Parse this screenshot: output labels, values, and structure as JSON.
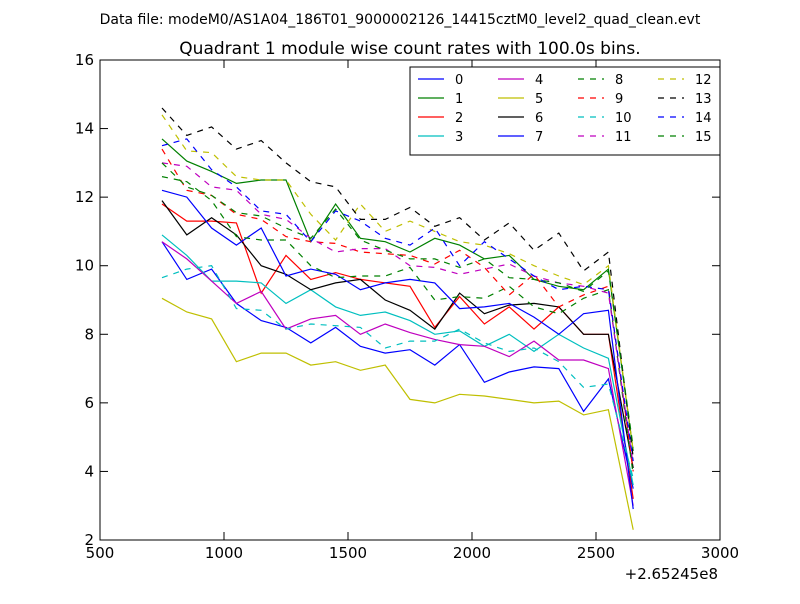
{
  "chart_data": {
    "type": "line",
    "suptitle": "Data file: modeM0/AS1A04_186T01_9000002126_14415cztM0_level2_quad_clean.evt",
    "title": "Quadrant 1 module wise count rates with 100.0s bins.",
    "xlabel": "",
    "ylabel": "",
    "x_offset_label": "+2.65245e8",
    "xlim": [
      500,
      3000
    ],
    "ylim": [
      2,
      16
    ],
    "xticks": [
      500,
      1000,
      1500,
      2000,
      2500,
      3000
    ],
    "yticks": [
      2,
      4,
      6,
      8,
      10,
      12,
      14,
      16
    ],
    "x": [
      750,
      850,
      950,
      1050,
      1150,
      1250,
      1350,
      1450,
      1550,
      1650,
      1750,
      1850,
      1950,
      2050,
      2150,
      2250,
      2350,
      2450,
      2550,
      2650
    ],
    "legend_position": "top-right",
    "series": [
      {
        "name": "0",
        "color": "#0000ff",
        "dash": "solid",
        "values": [
          10.7,
          9.6,
          9.9,
          8.9,
          8.4,
          8.2,
          7.75,
          8.2,
          7.65,
          7.45,
          7.55,
          7.1,
          7.7,
          6.6,
          6.9,
          7.05,
          7.0,
          5.75,
          6.7,
          3.5
        ]
      },
      {
        "name": "1",
        "color": "#008000",
        "dash": "solid",
        "values": [
          13.7,
          13.05,
          12.75,
          12.4,
          12.5,
          12.5,
          10.7,
          11.8,
          10.8,
          10.7,
          10.4,
          10.8,
          10.6,
          10.2,
          10.3,
          9.6,
          9.4,
          9.3,
          9.9,
          4.6
        ]
      },
      {
        "name": "2",
        "color": "#ff0000",
        "dash": "solid",
        "values": [
          11.8,
          11.3,
          11.3,
          11.25,
          9.2,
          10.3,
          9.6,
          9.8,
          9.6,
          9.5,
          9.4,
          8.2,
          9.1,
          8.3,
          8.8,
          8.15,
          8.8,
          8.0,
          8.0,
          3.2
        ]
      },
      {
        "name": "3",
        "color": "#00bfbf",
        "dash": "solid",
        "values": [
          10.9,
          10.3,
          9.55,
          9.55,
          9.5,
          8.9,
          9.3,
          8.8,
          8.55,
          8.65,
          8.4,
          8.0,
          8.1,
          7.65,
          8.0,
          7.5,
          8.0,
          7.6,
          7.3,
          3.6
        ]
      },
      {
        "name": "4",
        "color": "#bf00bf",
        "dash": "solid",
        "values": [
          10.7,
          10.2,
          9.55,
          8.9,
          9.25,
          8.15,
          8.45,
          8.55,
          8.0,
          8.3,
          8.05,
          7.85,
          7.7,
          7.65,
          7.35,
          7.8,
          7.25,
          7.25,
          7.0,
          3.0
        ]
      },
      {
        "name": "5",
        "color": "#bfbf00",
        "dash": "solid",
        "values": [
          9.05,
          8.65,
          8.45,
          7.2,
          7.45,
          7.45,
          7.1,
          7.2,
          6.95,
          7.1,
          6.1,
          6.0,
          6.25,
          6.2,
          6.1,
          6.0,
          6.05,
          5.65,
          5.8,
          2.3
        ]
      },
      {
        "name": "6",
        "color": "#000000",
        "dash": "solid",
        "values": [
          11.9,
          10.9,
          11.4,
          10.9,
          10.0,
          9.75,
          9.3,
          9.5,
          9.6,
          9.0,
          8.7,
          8.15,
          9.2,
          8.6,
          8.85,
          8.9,
          8.8,
          8.0,
          8.0,
          4.1
        ]
      },
      {
        "name": "7",
        "color": "#0000ff",
        "dash": "solid",
        "values": [
          12.2,
          12.0,
          11.1,
          10.6,
          11.1,
          9.7,
          9.9,
          9.75,
          9.3,
          9.5,
          9.6,
          9.5,
          8.75,
          8.8,
          8.9,
          8.5,
          8.0,
          8.6,
          8.7,
          2.9
        ]
      },
      {
        "name": "8",
        "color": "#008000",
        "dash": "dashed",
        "values": [
          12.6,
          12.45,
          11.9,
          10.85,
          10.75,
          10.75,
          10.0,
          9.65,
          9.7,
          9.7,
          9.95,
          9.0,
          9.1,
          9.05,
          9.4,
          8.8,
          8.6,
          9.05,
          9.3,
          3.9
        ]
      },
      {
        "name": "9",
        "color": "#ff0000",
        "dash": "dashed",
        "values": [
          13.4,
          12.2,
          12.05,
          11.5,
          11.35,
          10.85,
          10.7,
          10.65,
          10.4,
          10.35,
          10.3,
          10.05,
          10.45,
          9.95,
          9.15,
          9.75,
          8.8,
          9.15,
          9.4,
          4.0
        ]
      },
      {
        "name": "10",
        "color": "#00bfbf",
        "dash": "dashed",
        "values": [
          9.65,
          9.9,
          10.0,
          8.75,
          8.7,
          8.15,
          8.3,
          8.25,
          8.2,
          7.6,
          7.8,
          7.8,
          8.15,
          7.75,
          7.5,
          7.6,
          7.2,
          6.45,
          6.55,
          3.8
        ]
      },
      {
        "name": "11",
        "color": "#bf00bf",
        "dash": "dashed",
        "values": [
          13.0,
          12.9,
          12.3,
          12.2,
          11.5,
          11.35,
          10.8,
          10.4,
          10.5,
          10.5,
          10.0,
          9.95,
          9.75,
          9.9,
          10.05,
          9.7,
          9.5,
          9.4,
          9.2,
          4.2
        ]
      },
      {
        "name": "12",
        "color": "#bfbf00",
        "dash": "dashed",
        "values": [
          14.4,
          13.35,
          13.3,
          12.6,
          12.5,
          12.5,
          11.5,
          10.75,
          11.8,
          11.0,
          11.3,
          11.0,
          10.7,
          10.6,
          10.35,
          10.0,
          9.7,
          9.45,
          10.0,
          4.6
        ]
      },
      {
        "name": "13",
        "color": "#000000",
        "dash": "dashed",
        "values": [
          14.6,
          13.8,
          14.05,
          13.4,
          13.65,
          13.0,
          12.45,
          12.3,
          11.35,
          11.35,
          11.7,
          11.15,
          11.4,
          10.75,
          11.25,
          10.45,
          10.95,
          9.85,
          10.4,
          4.4
        ]
      },
      {
        "name": "14",
        "color": "#0000ff",
        "dash": "dashed",
        "values": [
          13.5,
          13.7,
          12.8,
          12.3,
          11.6,
          11.5,
          10.7,
          11.6,
          11.3,
          10.8,
          10.6,
          11.1,
          10.0,
          10.7,
          10.2,
          9.7,
          9.3,
          9.4,
          9.3,
          4.3
        ]
      },
      {
        "name": "15",
        "color": "#008000",
        "dash": "dashed",
        "values": [
          13.0,
          12.3,
          12.05,
          11.55,
          11.45,
          11.1,
          10.8,
          11.65,
          10.75,
          10.45,
          10.2,
          10.2,
          9.95,
          10.2,
          9.65,
          9.6,
          9.5,
          9.25,
          9.85,
          4.7
        ]
      }
    ]
  }
}
